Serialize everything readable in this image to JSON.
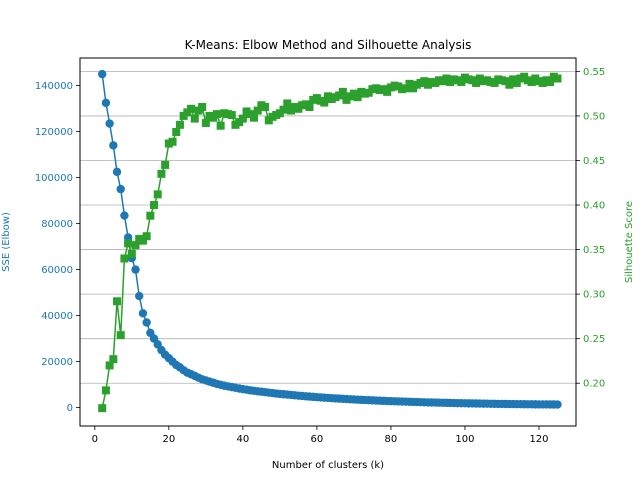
{
  "chart_data": {
    "type": "line",
    "title": "K-Means: Elbow Method and Silhouette Analysis",
    "xlabel": "Number of clusters (k)",
    "ylabel_left": "SSE (Elbow)",
    "ylabel_right": "Silhouette Score",
    "xlim": [
      -4,
      130
    ],
    "ylim_left": [
      -8000,
      152000
    ],
    "ylim_right": [
      0.152,
      0.565
    ],
    "x_ticks": [
      0,
      20,
      40,
      60,
      80,
      100,
      120
    ],
    "y_ticks_left": [
      0,
      20000,
      40000,
      60000,
      80000,
      100000,
      120000,
      140000
    ],
    "y_ticks_right": [
      0.2,
      0.25,
      0.3,
      0.35,
      0.4,
      0.45,
      0.5,
      0.55
    ],
    "grid": "horizontal lines on right (silhouette) axis",
    "colors": {
      "sse": "#1f77b4",
      "silhouette": "#2ca02c"
    },
    "series": [
      {
        "name": "SSE (Elbow)",
        "axis": "left",
        "marker": "circle",
        "x_start": 2,
        "x_step": 1,
        "values": [
          145000,
          132500,
          123500,
          114000,
          102500,
          95000,
          83500,
          74000,
          65000,
          60000,
          48500,
          41000,
          37000,
          32500,
          30000,
          27500,
          25000,
          23000,
          21500,
          20000,
          18500,
          17500,
          16200,
          15200,
          14500,
          13800,
          13000,
          12300,
          11800,
          11300,
          10800,
          10300,
          9900,
          9500,
          9200,
          8900,
          8600,
          8300,
          8000,
          7800,
          7500,
          7300,
          7100,
          6900,
          6700,
          6500,
          6300,
          6100,
          5950,
          5800,
          5650,
          5500,
          5350,
          5200,
          5050,
          4900,
          4780,
          4660,
          4540,
          4420,
          4300,
          4200,
          4100,
          4000,
          3900,
          3800,
          3710,
          3620,
          3530,
          3450,
          3370,
          3290,
          3210,
          3140,
          3070,
          3000,
          2930,
          2860,
          2800,
          2740,
          2680,
          2620,
          2560,
          2510,
          2460,
          2410,
          2360,
          2310,
          2260,
          2220,
          2180,
          2140,
          2100,
          2060,
          2020,
          1980,
          1940,
          1900,
          1870,
          1840,
          1810,
          1780,
          1750,
          1720,
          1690,
          1660,
          1630,
          1600,
          1580,
          1560,
          1540,
          1520,
          1500,
          1480,
          1460,
          1440,
          1420,
          1400,
          1390,
          1380,
          1370,
          1360,
          1350,
          1340
        ]
      },
      {
        "name": "Silhouette Score",
        "axis": "right",
        "marker": "square",
        "x_start": 2,
        "x_step": 1,
        "values": [
          0.172,
          0.192,
          0.22,
          0.227,
          0.292,
          0.254,
          0.34,
          0.357,
          0.345,
          0.355,
          0.362,
          0.36,
          0.365,
          0.388,
          0.4,
          0.412,
          0.435,
          0.445,
          0.469,
          0.471,
          0.482,
          0.49,
          0.5,
          0.504,
          0.508,
          0.497,
          0.506,
          0.51,
          0.492,
          0.5,
          0.498,
          0.502,
          0.489,
          0.503,
          0.502,
          0.501,
          0.49,
          0.493,
          0.497,
          0.505,
          0.502,
          0.498,
          0.506,
          0.512,
          0.51,
          0.495,
          0.499,
          0.501,
          0.503,
          0.507,
          0.514,
          0.506,
          0.51,
          0.508,
          0.512,
          0.513,
          0.51,
          0.518,
          0.52,
          0.517,
          0.515,
          0.522,
          0.519,
          0.521,
          0.523,
          0.527,
          0.518,
          0.522,
          0.525,
          0.521,
          0.527,
          0.525,
          0.526,
          0.53,
          0.531,
          0.529,
          0.53,
          0.527,
          0.532,
          0.534,
          0.533,
          0.53,
          0.531,
          0.536,
          0.531,
          0.535,
          0.537,
          0.539,
          0.535,
          0.538,
          0.537,
          0.54,
          0.539,
          0.542,
          0.538,
          0.541,
          0.54,
          0.538,
          0.543,
          0.541,
          0.54,
          0.537,
          0.542,
          0.539,
          0.54,
          0.538,
          0.537,
          0.541,
          0.54,
          0.539,
          0.535,
          0.541,
          0.537,
          0.542,
          0.544,
          0.54,
          0.538,
          0.542,
          0.539,
          0.537,
          0.54,
          0.538,
          0.544,
          0.542
        ]
      }
    ]
  }
}
